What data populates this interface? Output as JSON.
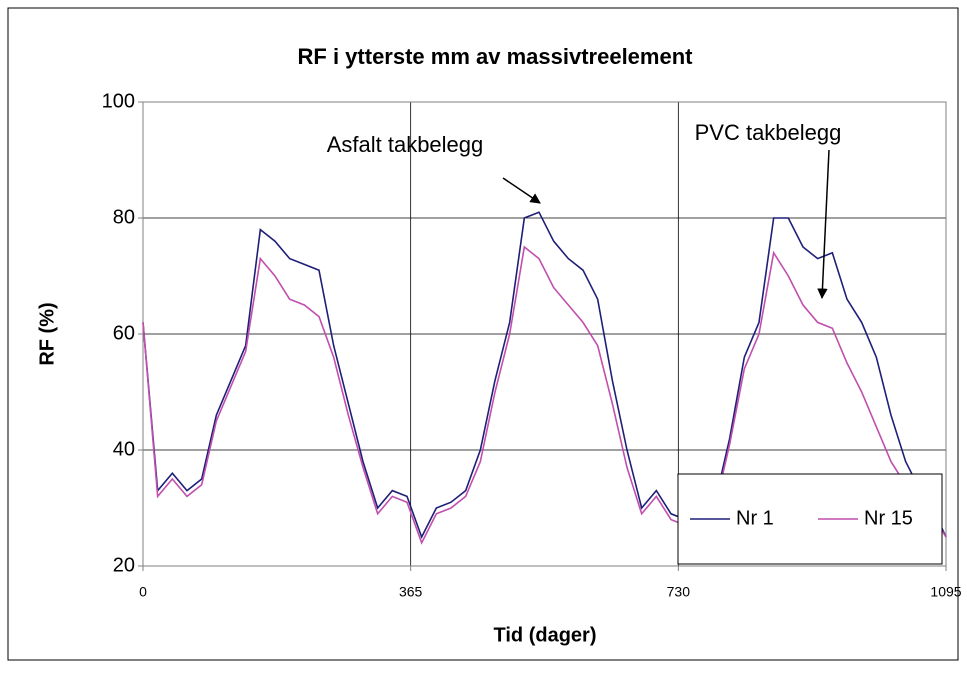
{
  "chart_data": {
    "type": "line",
    "title": "RF i ytterste mm av massivtreelement",
    "x_label": "Tid (dager)",
    "y_label": "RF (%)",
    "x": [
      0,
      20,
      40,
      60,
      80,
      100,
      120,
      140,
      160,
      180,
      200,
      220,
      240,
      260,
      280,
      300,
      320,
      340,
      360,
      380,
      400,
      420,
      440,
      460,
      480,
      500,
      520,
      540,
      560,
      580,
      600,
      620,
      640,
      660,
      680,
      700,
      720,
      740,
      760,
      780,
      800,
      820,
      840,
      860,
      880,
      900,
      920,
      940,
      960,
      980,
      1000,
      1020,
      1040,
      1060,
      1080,
      1095
    ],
    "series": [
      {
        "name": "Nr 1",
        "color": "#1f1f78",
        "values": [
          62,
          33,
          36,
          33,
          35,
          46,
          52,
          58,
          78,
          76,
          73,
          72,
          71,
          58,
          48,
          38,
          30,
          33,
          32,
          25,
          30,
          31,
          33,
          40,
          52,
          62,
          80,
          81,
          76,
          73,
          71,
          66,
          52,
          40,
          30,
          33,
          29,
          28,
          27,
          31,
          42,
          56,
          62,
          80,
          80,
          75,
          73,
          74,
          66,
          62,
          56,
          46,
          38,
          33,
          29,
          25
        ]
      },
      {
        "name": "Nr 15",
        "color": "#c04fae",
        "values": [
          62,
          32,
          35,
          32,
          34,
          45,
          51,
          57,
          73,
          70,
          66,
          65,
          63,
          56,
          46,
          37,
          29,
          32,
          31,
          24,
          29,
          30,
          32,
          38,
          50,
          60,
          75,
          73,
          68,
          65,
          62,
          58,
          48,
          37,
          29,
          32,
          28,
          27,
          26,
          30,
          41,
          54,
          60,
          74,
          70,
          65,
          62,
          61,
          55,
          50,
          44,
          38,
          34,
          31,
          28,
          25
        ]
      }
    ],
    "xlim": [
      0,
      1095
    ],
    "xticks": [
      0,
      365,
      730,
      1095
    ],
    "ylim": [
      20,
      100
    ],
    "yticks": [
      20,
      40,
      60,
      80,
      100
    ],
    "grid": true,
    "legend": "lower right",
    "annotations": [
      {
        "text": "Asfalt takbelegg"
      },
      {
        "text": "PVC takbelegg"
      }
    ]
  }
}
